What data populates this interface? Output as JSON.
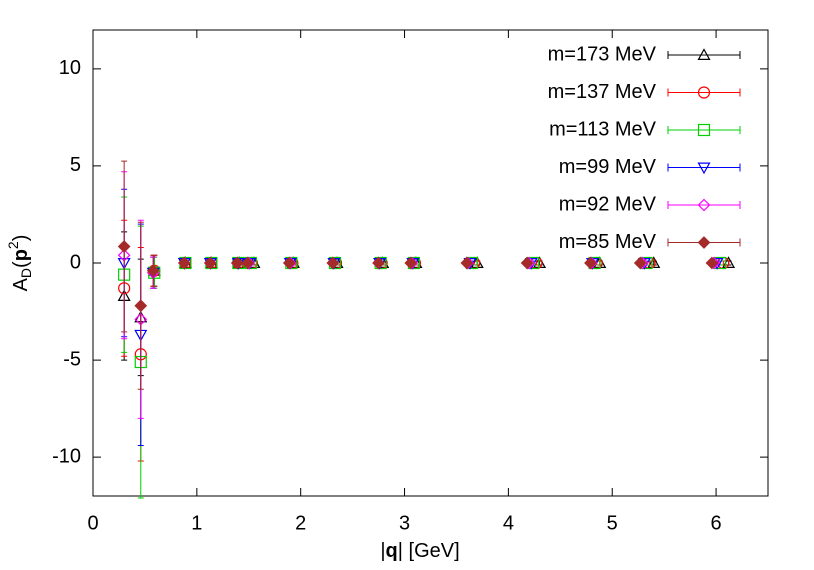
{
  "chart_data": {
    "type": "scatter",
    "xlabel": [
      "|",
      "q",
      "| [GeV]"
    ],
    "ylabel": [
      "A",
      "D",
      "(",
      "p",
      "2",
      ")"
    ],
    "xlim": [
      0,
      6.5
    ],
    "ylim": [
      -12,
      12
    ],
    "xticks": [
      0,
      1,
      2,
      3,
      4,
      5,
      6
    ],
    "yticks": [
      -10,
      -5,
      0,
      5,
      10
    ],
    "legend": "upper right",
    "series": [
      {
        "name": "m=173 MeV",
        "color": "#000000",
        "marker": "triangle",
        "x": [
          0.3,
          0.46,
          0.59,
          0.89,
          1.14,
          1.41,
          1.55,
          1.93,
          2.35,
          2.79,
          3.11,
          3.7,
          4.3,
          4.88,
          5.4,
          6.12
        ],
        "values": [
          -1.7,
          -2.8,
          -0.4,
          0,
          0,
          0,
          0,
          0,
          0,
          0,
          0,
          0,
          0,
          0,
          0,
          0
        ],
        "errors": [
          3.3,
          3.0,
          0.8,
          0.1,
          0.1,
          0.1,
          0.1,
          0.1,
          0.1,
          0.1,
          0.1,
          0.1,
          0.1,
          0.1,
          0.1,
          0.1
        ]
      },
      {
        "name": "m=137 MeV",
        "color": "#ff0000",
        "marker": "circle",
        "x": [
          0.3,
          0.46,
          0.59,
          0.89,
          1.14,
          1.4,
          1.53,
          1.92,
          2.34,
          2.78,
          3.1,
          3.67,
          4.27,
          4.85,
          5.36,
          6.07
        ],
        "values": [
          -1.3,
          -4.7,
          -0.4,
          0,
          0,
          0,
          0,
          0,
          0,
          0,
          0,
          0,
          0,
          0,
          0,
          0
        ],
        "errors": [
          3.5,
          5.5,
          0.8,
          0.1,
          0.1,
          0.1,
          0.1,
          0.1,
          0.1,
          0.1,
          0.1,
          0.1,
          0.1,
          0.1,
          0.1,
          0.1
        ]
      },
      {
        "name": "m=113 MeV",
        "color": "#00d000",
        "marker": "square",
        "x": [
          0.3,
          0.46,
          0.59,
          0.89,
          1.14,
          1.4,
          1.52,
          1.91,
          2.33,
          2.77,
          3.09,
          3.65,
          4.24,
          4.83,
          5.33,
          6.04
        ],
        "values": [
          -0.6,
          -5.1,
          -0.5,
          0,
          0,
          0,
          0,
          0,
          0,
          0,
          0,
          0,
          0,
          0,
          0,
          0
        ],
        "errors": [
          4.0,
          7.0,
          0.8,
          0.1,
          0.1,
          0.1,
          0.1,
          0.1,
          0.1,
          0.1,
          0.1,
          0.1,
          0.1,
          0.1,
          0.1,
          0.1
        ]
      },
      {
        "name": "m=99 MeV",
        "color": "#0000ff",
        "marker": "triangle-down",
        "x": [
          0.3,
          0.46,
          0.58,
          0.88,
          1.13,
          1.4,
          1.51,
          1.9,
          2.32,
          2.76,
          3.08,
          3.63,
          4.22,
          4.81,
          5.31,
          6.01
        ],
        "values": [
          0.0,
          -3.7,
          -0.5,
          0,
          0,
          0,
          0,
          0,
          0,
          0,
          0,
          0,
          0,
          0,
          0,
          0
        ],
        "errors": [
          3.8,
          5.7,
          0.8,
          0.1,
          0.1,
          0.1,
          0.1,
          0.1,
          0.1,
          0.1,
          0.1,
          0.1,
          0.1,
          0.1,
          0.1,
          0.1
        ]
      },
      {
        "name": "m=92 MeV",
        "color": "#ff00ff",
        "marker": "diamond",
        "x": [
          0.3,
          0.46,
          0.58,
          0.88,
          1.13,
          1.39,
          1.5,
          1.9,
          2.31,
          2.75,
          3.07,
          3.61,
          4.2,
          4.8,
          5.29,
          5.98
        ],
        "values": [
          0.4,
          -2.9,
          -0.5,
          0,
          0,
          0,
          0,
          0,
          0,
          0,
          0,
          0,
          0,
          0,
          0,
          0
        ],
        "errors": [
          4.3,
          5.1,
          0.8,
          0.1,
          0.1,
          0.1,
          0.1,
          0.1,
          0.1,
          0.1,
          0.1,
          0.1,
          0.1,
          0.1,
          0.1,
          0.1
        ]
      },
      {
        "name": "m=85 MeV",
        "color": "#a52a2a",
        "marker": "diamond-filled",
        "x": [
          0.3,
          0.46,
          0.58,
          0.88,
          1.13,
          1.39,
          1.49,
          1.89,
          2.31,
          2.75,
          3.06,
          3.6,
          4.18,
          4.79,
          5.27,
          5.96
        ],
        "values": [
          0.85,
          -2.2,
          -0.4,
          0,
          0,
          0,
          0,
          0,
          0,
          0,
          0,
          0,
          0,
          0,
          0,
          0
        ],
        "errors": [
          4.4,
          4.3,
          0.8,
          0.1,
          0.1,
          0.1,
          0.1,
          0.1,
          0.1,
          0.1,
          0.1,
          0.1,
          0.1,
          0.1,
          0.1,
          0.1
        ]
      }
    ]
  }
}
